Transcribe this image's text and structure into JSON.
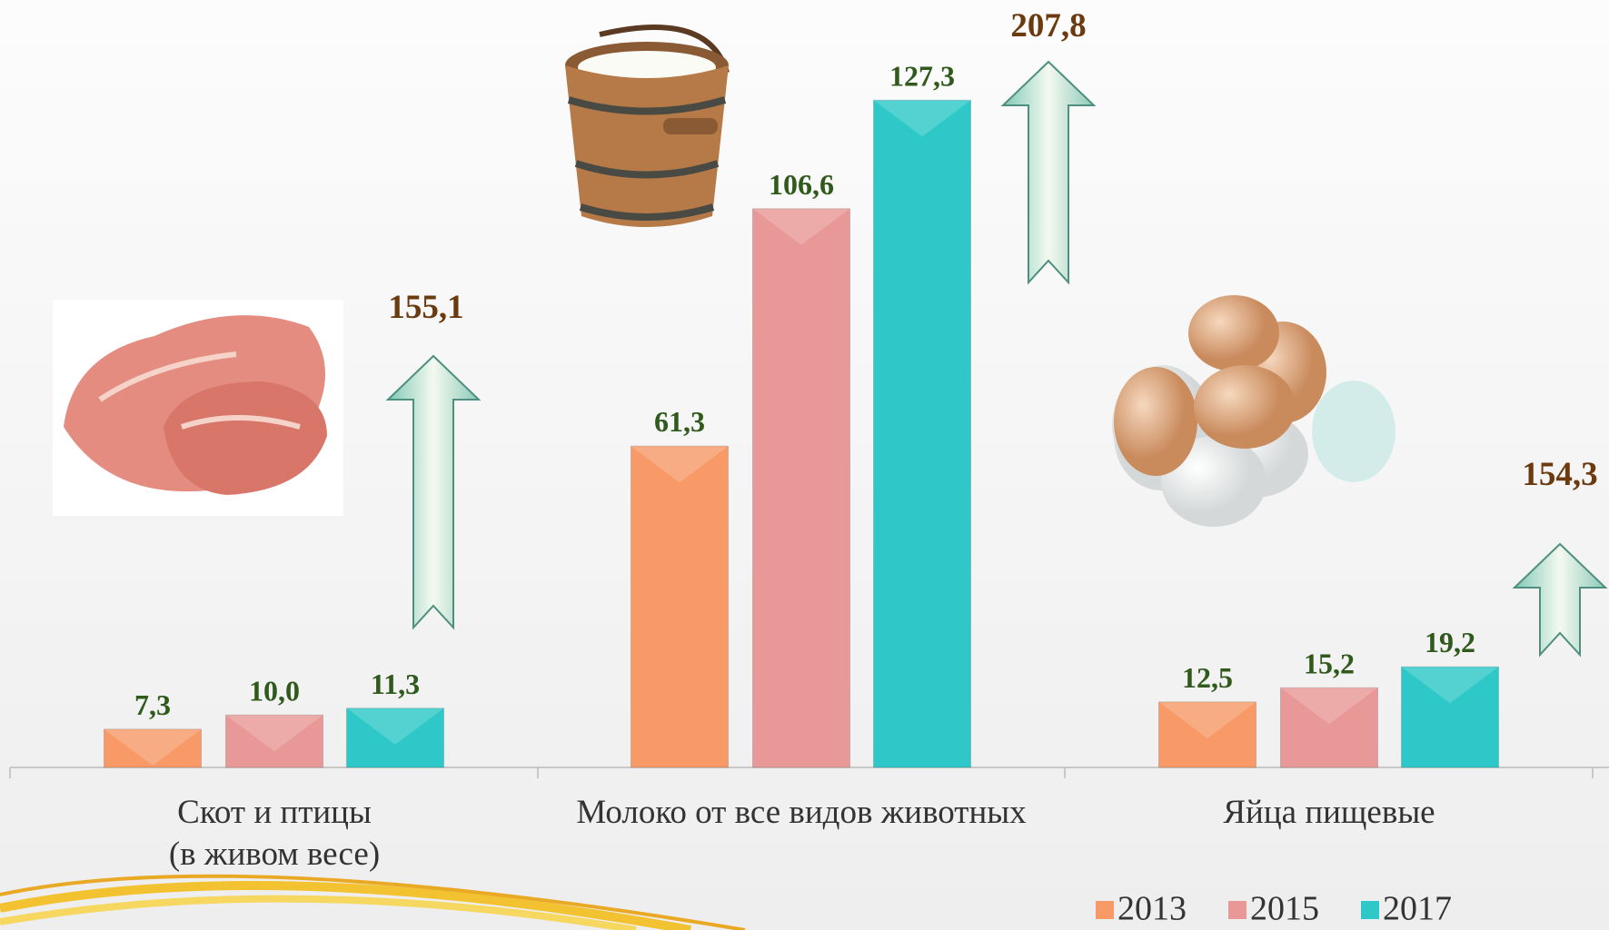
{
  "chart_data": {
    "type": "bar",
    "categories": [
      "Скот и птицы\n(в живом весе)",
      "Молоко от все видов животных",
      "Яйца пищевые"
    ],
    "series": [
      {
        "name": "2013",
        "color": "#f79a68",
        "values": [
          7.3,
          61.3,
          12.5
        ],
        "value_labels": [
          "7,3",
          "61,3",
          "12,5"
        ]
      },
      {
        "name": "2015",
        "color": "#e89896",
        "values": [
          10.0,
          106.6,
          15.2
        ],
        "value_labels": [
          "10,0",
          "106,6",
          "15,2"
        ]
      },
      {
        "name": "2017",
        "color": "#2fc8c8",
        "values": [
          11.3,
          127.3,
          19.2
        ],
        "value_labels": [
          "11,3",
          "127,3",
          "19,2"
        ]
      }
    ],
    "annotations": [
      "155,1",
      "207,8",
      "154,3"
    ],
    "ylim": [
      0,
      140
    ],
    "legend": "bottom-right"
  }
}
